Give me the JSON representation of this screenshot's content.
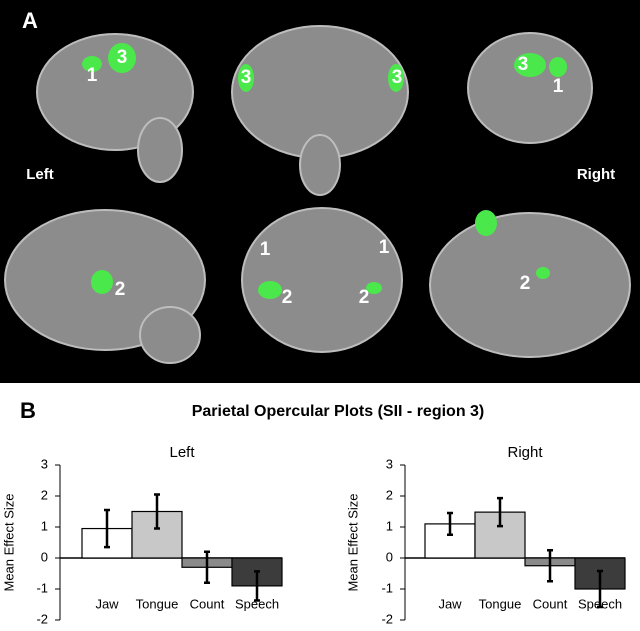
{
  "panel_a": {
    "label": "A",
    "left": "Left",
    "right": "Right",
    "region_labels": [
      "1",
      "3",
      "3",
      "3",
      "3",
      "1",
      "2",
      "1",
      "1",
      "2",
      "2",
      "2"
    ]
  },
  "panel_b": {
    "label": "B",
    "title": "Parietal Opercular Plots (SII - region 3)"
  },
  "chart_data": [
    {
      "type": "bar",
      "title": "Left",
      "y_label": "Mean Effect Size",
      "categories": [
        "Jaw",
        "Tongue",
        "Count",
        "Speech"
      ],
      "values": [
        0.95,
        1.5,
        -0.3,
        -0.9
      ],
      "errors": [
        0.6,
        0.55,
        0.5,
        0.47
      ],
      "colors": [
        "#ffffff",
        "#c8c8c8",
        "#8a8a8a",
        "#3c3c3c"
      ],
      "ylim": [
        -2,
        3
      ],
      "yticks": [
        -2,
        -1,
        0,
        1,
        2,
        3
      ]
    },
    {
      "type": "bar",
      "title": "Right",
      "y_label": "Mean Effect Size",
      "categories": [
        "Jaw",
        "Tongue",
        "Count",
        "Speech"
      ],
      "values": [
        1.1,
        1.48,
        -0.25,
        -1.0
      ],
      "errors": [
        0.35,
        0.45,
        0.5,
        0.58
      ],
      "colors": [
        "#ffffff",
        "#c8c8c8",
        "#8a8a8a",
        "#3c3c3c"
      ],
      "ylim": [
        -2,
        3
      ],
      "yticks": [
        -2,
        -1,
        0,
        1,
        2,
        3
      ]
    }
  ]
}
